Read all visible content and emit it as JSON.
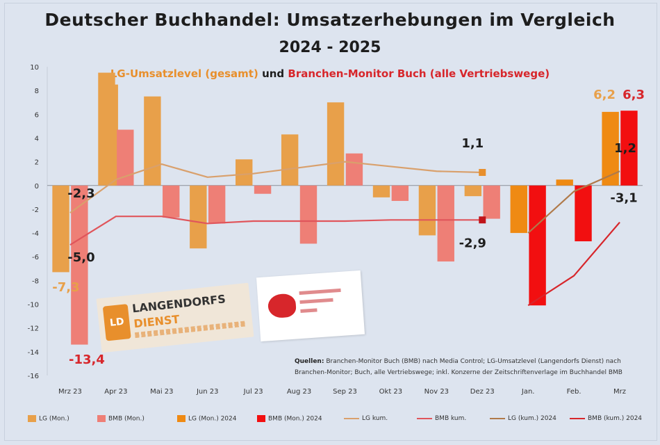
{
  "header": {
    "title_line1": "Deutscher Buchhandel: Umsatzerhebungen im Vergleich",
    "title_line2": "2024 - 2025",
    "subtitle_part1": "LG-Umsatzlevel (gesamt)",
    "subtitle_part2": "und",
    "subtitle_part3": "Branchen-Monitor Buch (alle Vertriebswege)"
  },
  "logos": {
    "lgd_line1": "LANGENDORFS",
    "lgd_line2": "DIENST",
    "lgd_mark": "LD"
  },
  "source": {
    "label": "Quellen:",
    "text": "Branchen-Monitor Buch (BMB) nach Media Control; LG-Umsatzlevel (Langendorfs Dienst) nach Branchen-Monitor; Buch, alle Vertriebswege; inkl. Konzerne der Zeitschriftenverlage im Buchhandel BMB"
  },
  "legend": [
    {
      "label": "LG (Mon.)",
      "color": "#e8a04a",
      "kind": "bar"
    },
    {
      "label": "BMB (Mon.)",
      "color": "#ee7f76",
      "kind": "bar"
    },
    {
      "label": "LG (Mon.) 2024",
      "color": "#ef8a13",
      "kind": "bar"
    },
    {
      "label": "BMB (Mon.) 2024",
      "color": "#f20f10",
      "kind": "bar"
    },
    {
      "label": "LG kum.",
      "color": "#d9a06c",
      "kind": "line"
    },
    {
      "label": "BMB kum.",
      "color": "#e0555b",
      "kind": "line"
    },
    {
      "label": "LG (kum.) 2024",
      "color": "#b07a4a",
      "kind": "line"
    },
    {
      "label": "BMB (kum.) 2024",
      "color": "#d7262b",
      "kind": "line"
    }
  ],
  "chart_data": {
    "type": "bar",
    "categories": [
      "Mrz 23",
      "Apr 23",
      "Mai 23",
      "Jun 23",
      "Jul 23",
      "Aug 23",
      "Sep 23",
      "Okt 23",
      "Nov 23",
      "Dez 23",
      "Jan.",
      "Feb.",
      "Mrz"
    ],
    "ylim": [
      -16,
      10
    ],
    "yticks": [
      10,
      8,
      6,
      4,
      2,
      0,
      -2,
      -4,
      -6,
      -8,
      -10,
      -12,
      -14,
      -16
    ],
    "grid": false,
    "series": [
      {
        "name": "LG (Mon.)",
        "color": "#e8a04a",
        "kind": "bar",
        "values": [
          -7.3,
          9.5,
          7.5,
          -5.3,
          2.2,
          4.3,
          7.0,
          -1.0,
          -4.2,
          -0.9,
          null,
          null,
          null
        ]
      },
      {
        "name": "LG (Mon.) overlay",
        "color": "#e8a04a",
        "kind": "bar2",
        "values": [
          null,
          8.5,
          null,
          null,
          null,
          null,
          null,
          null,
          null,
          null,
          null,
          null,
          null
        ]
      },
      {
        "name": "BMB (Mon.)",
        "color": "#ee7f76",
        "kind": "bar",
        "values": [
          -13.4,
          4.7,
          -2.7,
          -3.2,
          -0.7,
          -4.9,
          2.7,
          -1.3,
          -6.4,
          -2.8,
          null,
          null,
          null
        ]
      },
      {
        "name": "LG (Mon.) 2024",
        "color": "#ef8a13",
        "kind": "bar",
        "values": [
          null,
          null,
          null,
          null,
          null,
          null,
          null,
          null,
          null,
          null,
          -4.0,
          0.5,
          6.2
        ]
      },
      {
        "name": "BMB (Mon.) 2024",
        "color": "#f20f10",
        "kind": "bar",
        "values": [
          null,
          null,
          null,
          null,
          null,
          null,
          null,
          null,
          null,
          null,
          -10.1,
          -4.7,
          6.3
        ]
      },
      {
        "name": "LG kum.",
        "color": "#d9a06c",
        "kind": "line",
        "values": [
          -2.3,
          0.5,
          1.8,
          0.7,
          1.0,
          1.5,
          2.0,
          1.6,
          1.2,
          1.1,
          null,
          null,
          null
        ]
      },
      {
        "name": "BMB kum.",
        "color": "#e0555b",
        "kind": "line",
        "values": [
          -5.0,
          -2.6,
          -2.6,
          -3.2,
          -3.0,
          -3.0,
          -3.0,
          -2.9,
          -2.9,
          -2.9,
          null,
          null,
          null
        ]
      },
      {
        "name": "LG (kum.) 2024",
        "color": "#b07a4a",
        "kind": "line",
        "values": [
          null,
          null,
          null,
          null,
          null,
          null,
          null,
          null,
          null,
          null,
          -4.0,
          -0.5,
          1.2
        ]
      },
      {
        "name": "BMB (kum.) 2024",
        "color": "#d7262b",
        "kind": "line",
        "values": [
          null,
          null,
          null,
          null,
          null,
          null,
          null,
          null,
          null,
          null,
          -10.1,
          -7.6,
          -3.1
        ]
      }
    ],
    "annotations": [
      {
        "text": "-2,3",
        "x": "Mrz 23",
        "y": -1.0,
        "color": "#1d1d1d"
      },
      {
        "text": "-5,0",
        "x": "Mrz 23",
        "y": -6.4,
        "color": "#1d1d1d"
      },
      {
        "text": "-7,3",
        "x": "Mrz 23",
        "y": -8.9,
        "color": "#e8a04a"
      },
      {
        "text": "-13,4",
        "x": "Mrz 23",
        "y": -15.0,
        "color": "#d7262b"
      },
      {
        "text": "1,1",
        "x": "Dez 23",
        "y": 3.2,
        "color": "#1d1d1d"
      },
      {
        "text": "-2,9",
        "x": "Dez 23",
        "y": -5.2,
        "color": "#1d1d1d"
      },
      {
        "text": "6,2",
        "x": "Mrz",
        "y": 7.3,
        "color": "#e8a04a"
      },
      {
        "text": "6,3",
        "x": "Mrz",
        "y": 7.3,
        "color": "#d7262b"
      },
      {
        "text": "1,2",
        "x": "Mrz",
        "y": 2.8,
        "color": "#1d1d1d"
      },
      {
        "text": "-3,1",
        "x": "Mrz",
        "y": -1.4,
        "color": "#1d1d1d"
      }
    ]
  }
}
